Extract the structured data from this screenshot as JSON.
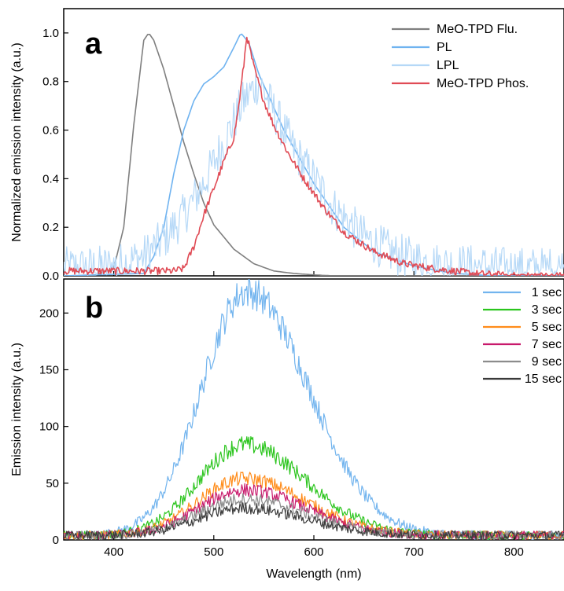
{
  "chart_data": [
    {
      "type": "line",
      "panel_label": "a",
      "xlabel": "",
      "ylabel": "Normalized emission intensity (a.u.)",
      "xlim": [
        350,
        850
      ],
      "ylim": [
        0,
        1.1
      ],
      "x_ticks": [
        400,
        500,
        600,
        700,
        800
      ],
      "y_ticks": [
        0,
        0.2,
        0.4,
        0.6,
        0.8,
        1.0
      ],
      "y_tick_labels": [
        "0.0",
        "0.2",
        "0.4",
        "0.6",
        "0.8",
        "1.0"
      ],
      "legend_position": "top-right",
      "series": [
        {
          "name": "MeO-TPD Flu.",
          "color": "#7f7f7f",
          "peak": 432,
          "x": [
            350,
            380,
            400,
            410,
            420,
            430,
            435,
            440,
            450,
            460,
            470,
            480,
            490,
            500,
            520,
            540,
            560,
            580,
            600,
            620
          ],
          "values": [
            0,
            0,
            0.03,
            0.2,
            0.62,
            0.97,
            1.0,
            0.97,
            0.85,
            0.7,
            0.55,
            0.42,
            0.3,
            0.21,
            0.11,
            0.05,
            0.02,
            0.01,
            0.004,
            0
          ]
        },
        {
          "name": "PL",
          "color": "#6fb3f0",
          "peak": 527,
          "x": [
            350,
            430,
            440,
            450,
            460,
            470,
            480,
            490,
            500,
            510,
            520,
            527,
            535,
            545,
            555,
            570,
            600,
            630,
            660,
            700,
            740,
            780
          ],
          "values": [
            0,
            0.01,
            0.08,
            0.2,
            0.42,
            0.6,
            0.72,
            0.79,
            0.82,
            0.86,
            0.94,
            1.0,
            0.96,
            0.83,
            0.74,
            0.6,
            0.38,
            0.2,
            0.1,
            0.04,
            0.01,
            0
          ]
        },
        {
          "name": "LPL",
          "color": "#b5d8f7",
          "peak": 545,
          "x": [
            350,
            400,
            430,
            450,
            470,
            490,
            510,
            530,
            545,
            560,
            580,
            600,
            620,
            650,
            680,
            720,
            760,
            800,
            850
          ],
          "values": [
            0.03,
            0.04,
            0.08,
            0.15,
            0.25,
            0.38,
            0.55,
            0.72,
            0.8,
            0.68,
            0.52,
            0.4,
            0.28,
            0.16,
            0.09,
            0.05,
            0.04,
            0.03,
            0.03
          ]
        },
        {
          "name": "MeO-TPD Phos.",
          "color": "#e04b55",
          "peak": 533,
          "x": [
            350,
            460,
            470,
            480,
            490,
            500,
            510,
            520,
            525,
            530,
            533,
            540,
            550,
            560,
            575,
            590,
            610,
            630,
            660,
            690,
            720,
            760,
            800
          ],
          "values": [
            0.02,
            0.02,
            0.03,
            0.12,
            0.25,
            0.36,
            0.47,
            0.57,
            0.7,
            0.87,
            0.99,
            0.86,
            0.72,
            0.62,
            0.5,
            0.4,
            0.28,
            0.18,
            0.1,
            0.05,
            0.03,
            0.01,
            0
          ]
        }
      ]
    },
    {
      "type": "line",
      "panel_label": "b",
      "xlabel": "Wavelength (nm)",
      "ylabel": "Emission intensity (a.u.)",
      "xlim": [
        350,
        850
      ],
      "ylim": [
        0,
        230
      ],
      "x_ticks": [
        400,
        500,
        600,
        700,
        800
      ],
      "y_ticks": [
        0,
        50,
        100,
        150,
        200
      ],
      "y_tick_labels": [
        "0",
        "50",
        "100",
        "150",
        "200"
      ],
      "legend_position": "top-right",
      "series": [
        {
          "name": "1 sec",
          "color": "#72b4ee",
          "peak": 215,
          "center": 533
        },
        {
          "name": "3 sec",
          "color": "#2bc51d",
          "peak": 80,
          "center": 530
        },
        {
          "name": "5 sec",
          "color": "#ff8c1a",
          "peak": 50,
          "center": 530
        },
        {
          "name": "7 sec",
          "color": "#c8196c",
          "peak": 40,
          "center": 530
        },
        {
          "name": "9 sec",
          "color": "#8c8c8c",
          "peak": 32,
          "center": 530
        },
        {
          "name": "15 sec",
          "color": "#3a3a3a",
          "peak": 24,
          "center": 530
        }
      ]
    }
  ]
}
